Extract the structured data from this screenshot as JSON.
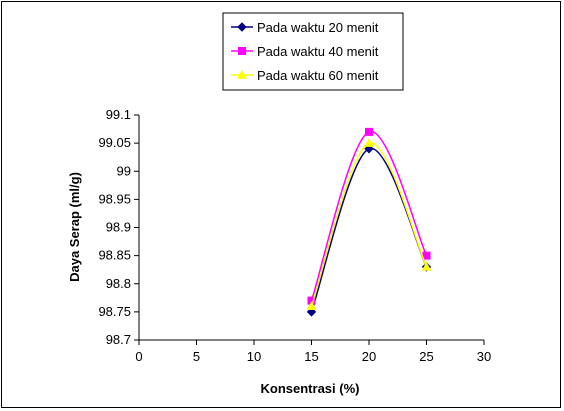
{
  "chart_data": {
    "type": "line",
    "title": "",
    "xlabel": "Konsentrasi (%)",
    "ylabel": "Daya Serap (ml/g)",
    "xlim": [
      0,
      30
    ],
    "ylim": [
      98.7,
      99.1
    ],
    "x_ticks": [
      0,
      5,
      10,
      15,
      20,
      25,
      30
    ],
    "y_ticks": [
      98.7,
      98.75,
      98.8,
      98.85,
      98.9,
      98.95,
      99,
      99.05,
      99.1
    ],
    "x_tick_labels": [
      "0",
      "5",
      "10",
      "15",
      "20",
      "25",
      "30"
    ],
    "y_tick_labels": [
      "98.7",
      "98.75",
      "98.8",
      "98.85",
      "98.9",
      "98.95",
      "99",
      "99.05",
      "99.1"
    ],
    "grid": false,
    "smooth": true,
    "legend_position": "top-right",
    "series": [
      {
        "name": "Pada waktu 20 menit",
        "x": [
          15,
          20,
          25
        ],
        "values": [
          98.75,
          99.04,
          98.83
        ],
        "color": "#000080",
        "marker": "diamond"
      },
      {
        "name": "Pada waktu 40 menit",
        "x": [
          15,
          20,
          25
        ],
        "values": [
          98.77,
          99.07,
          98.85
        ],
        "color": "#ff00ff",
        "marker": "square"
      },
      {
        "name": "Pada waktu 60 menit",
        "x": [
          15,
          20,
          25
        ],
        "values": [
          98.76,
          99.05,
          98.83
        ],
        "color": "#ffff00",
        "marker": "triangle"
      }
    ]
  }
}
